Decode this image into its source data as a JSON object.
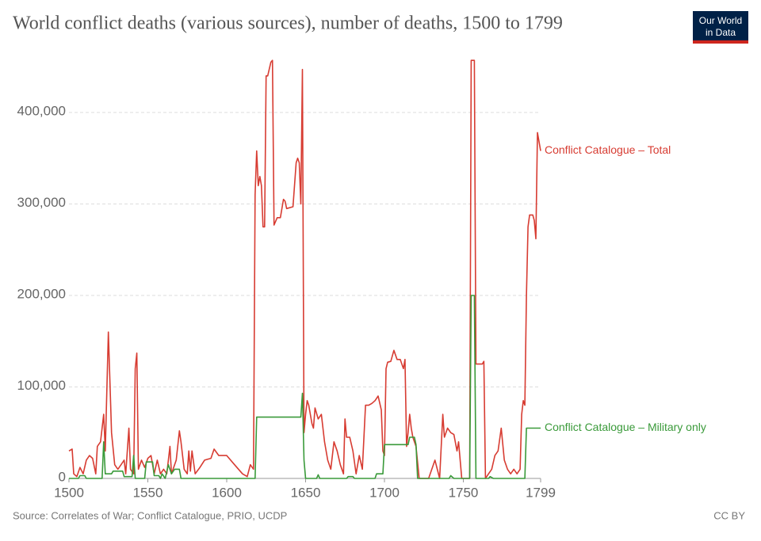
{
  "chart_data": {
    "type": "line",
    "title": "World conflict deaths (various sources), number of deaths, 1500 to 1799",
    "source": "Source: Correlates of War; Conflict Catalogue, PRIO, UCDP",
    "license": "CC BY",
    "logo": [
      "Our World",
      "in Data"
    ],
    "xlim": [
      1500,
      1799
    ],
    "xticks": [
      1500,
      1550,
      1600,
      1650,
      1700,
      1750,
      1799
    ],
    "ylim": [
      0,
      458000
    ],
    "yticks": [
      0,
      {
        "value": 100000,
        "label": "100,000"
      },
      {
        "value": 200000,
        "label": "200,000"
      },
      {
        "value": 300000,
        "label": "300,000"
      },
      {
        "value": 400000,
        "label": "400,000"
      }
    ],
    "grid": true,
    "series": [
      {
        "name": "Conflict Catalogue – Total",
        "color": "#d73c32",
        "x": [
          1500,
          1502,
          1503,
          1505,
          1507,
          1509,
          1511,
          1513,
          1515,
          1517,
          1518,
          1520,
          1522,
          1523,
          1525,
          1527,
          1529,
          1531,
          1533,
          1535,
          1536,
          1538,
          1539,
          1541,
          1542,
          1543,
          1544,
          1546,
          1548,
          1550,
          1552,
          1554,
          1556,
          1558,
          1560,
          1562,
          1564,
          1565,
          1568,
          1570,
          1571,
          1573,
          1575,
          1576,
          1577,
          1578,
          1580,
          1583,
          1586,
          1590,
          1592,
          1595,
          1600,
          1605,
          1610,
          1613,
          1615,
          1617,
          1618,
          1619,
          1620,
          1621,
          1622,
          1623,
          1624,
          1625,
          1626,
          1628,
          1629,
          1630,
          1632,
          1634,
          1636,
          1637,
          1638,
          1642,
          1644,
          1645,
          1646,
          1647,
          1648,
          1649,
          1650,
          1651,
          1652,
          1654,
          1655,
          1656,
          1658,
          1660,
          1662,
          1664,
          1666,
          1668,
          1670,
          1672,
          1674,
          1675,
          1676,
          1678,
          1680,
          1682,
          1684,
          1686,
          1688,
          1690,
          1692,
          1694,
          1696,
          1698,
          1699,
          1700,
          1701,
          1702,
          1704,
          1706,
          1708,
          1710,
          1712,
          1713,
          1714,
          1715,
          1716,
          1717,
          1718,
          1720,
          1722,
          1728,
          1732,
          1735,
          1737,
          1738,
          1740,
          1742,
          1744,
          1746,
          1747,
          1749,
          1754,
          1755,
          1757,
          1758,
          1760,
          1762,
          1763,
          1764,
          1766,
          1768,
          1770,
          1772,
          1774,
          1776,
          1778,
          1780,
          1782,
          1784,
          1786,
          1787,
          1788,
          1789,
          1790,
          1791,
          1792,
          1794,
          1795,
          1796,
          1797,
          1799
        ],
        "values": [
          30000,
          32000,
          5000,
          2000,
          12000,
          5000,
          20000,
          25000,
          22000,
          5000,
          35000,
          40000,
          70000,
          30000,
          160000,
          50000,
          15000,
          10000,
          15000,
          20000,
          5000,
          55000,
          10000,
          5000,
          120000,
          137000,
          10000,
          20000,
          12000,
          22000,
          25000,
          5000,
          20000,
          5000,
          10000,
          5000,
          35000,
          5000,
          20000,
          52000,
          40000,
          10000,
          5000,
          30000,
          8000,
          30000,
          5000,
          12000,
          20000,
          22000,
          32000,
          25000,
          25000,
          15000,
          5000,
          2000,
          15000,
          10000,
          310000,
          358000,
          320000,
          330000,
          320000,
          275000,
          275000,
          440000,
          440000,
          455000,
          457000,
          277000,
          285000,
          285000,
          305000,
          303000,
          295000,
          297000,
          345000,
          350000,
          345000,
          300000,
          447000,
          50000,
          70000,
          85000,
          80000,
          60000,
          55000,
          77000,
          65000,
          70000,
          40000,
          20000,
          10000,
          40000,
          30000,
          15000,
          5000,
          65000,
          45000,
          45000,
          30000,
          5000,
          25000,
          10000,
          80000,
          80000,
          82000,
          85000,
          90000,
          75000,
          30000,
          25000,
          120000,
          127000,
          128000,
          140000,
          130000,
          130000,
          120000,
          130000,
          35000,
          50000,
          70000,
          55000,
          45000,
          35000,
          0,
          0,
          20000,
          0,
          70000,
          45000,
          55000,
          50000,
          48000,
          30000,
          40000,
          0,
          0,
          457000,
          457000,
          125000,
          125000,
          125000,
          128000,
          0,
          5000,
          10000,
          25000,
          30000,
          55000,
          20000,
          10000,
          5000,
          10000,
          5000,
          10000,
          70000,
          85000,
          80000,
          200000,
          275000,
          288000,
          288000,
          282000,
          262000,
          378000,
          358000
        ]
      },
      {
        "name": "Conflict Catalogue – Military only",
        "color": "#3a9a3a",
        "x": [
          1500,
          1506,
          1507,
          1510,
          1511,
          1521,
          1522,
          1523,
          1527,
          1528,
          1534,
          1535,
          1540,
          1541,
          1542,
          1548,
          1549,
          1553,
          1554,
          1557,
          1558,
          1559,
          1561,
          1563,
          1565,
          1567,
          1570,
          1571,
          1618,
          1619,
          1647,
          1648,
          1649,
          1650,
          1657,
          1658,
          1659,
          1676,
          1677,
          1680,
          1681,
          1694,
          1695,
          1699,
          1700,
          1715,
          1716,
          1719,
          1720,
          1721,
          1741,
          1742,
          1744,
          1754,
          1755,
          1757,
          1758,
          1766,
          1767,
          1769,
          1789,
          1790,
          1799
        ],
        "values": [
          0,
          0,
          3000,
          3000,
          0,
          0,
          40000,
          5000,
          5000,
          8000,
          8000,
          2000,
          2000,
          25000,
          0,
          0,
          18000,
          18000,
          3000,
          3000,
          0,
          5000,
          0,
          15000,
          5000,
          10000,
          10000,
          0,
          0,
          67000,
          67000,
          93000,
          20000,
          0,
          0,
          4000,
          0,
          0,
          2000,
          2000,
          0,
          0,
          5000,
          5000,
          37000,
          37000,
          45000,
          45000,
          37000,
          0,
          0,
          3000,
          0,
          0,
          200000,
          200000,
          0,
          0,
          2000,
          0,
          0,
          55000,
          55000
        ]
      }
    ]
  }
}
